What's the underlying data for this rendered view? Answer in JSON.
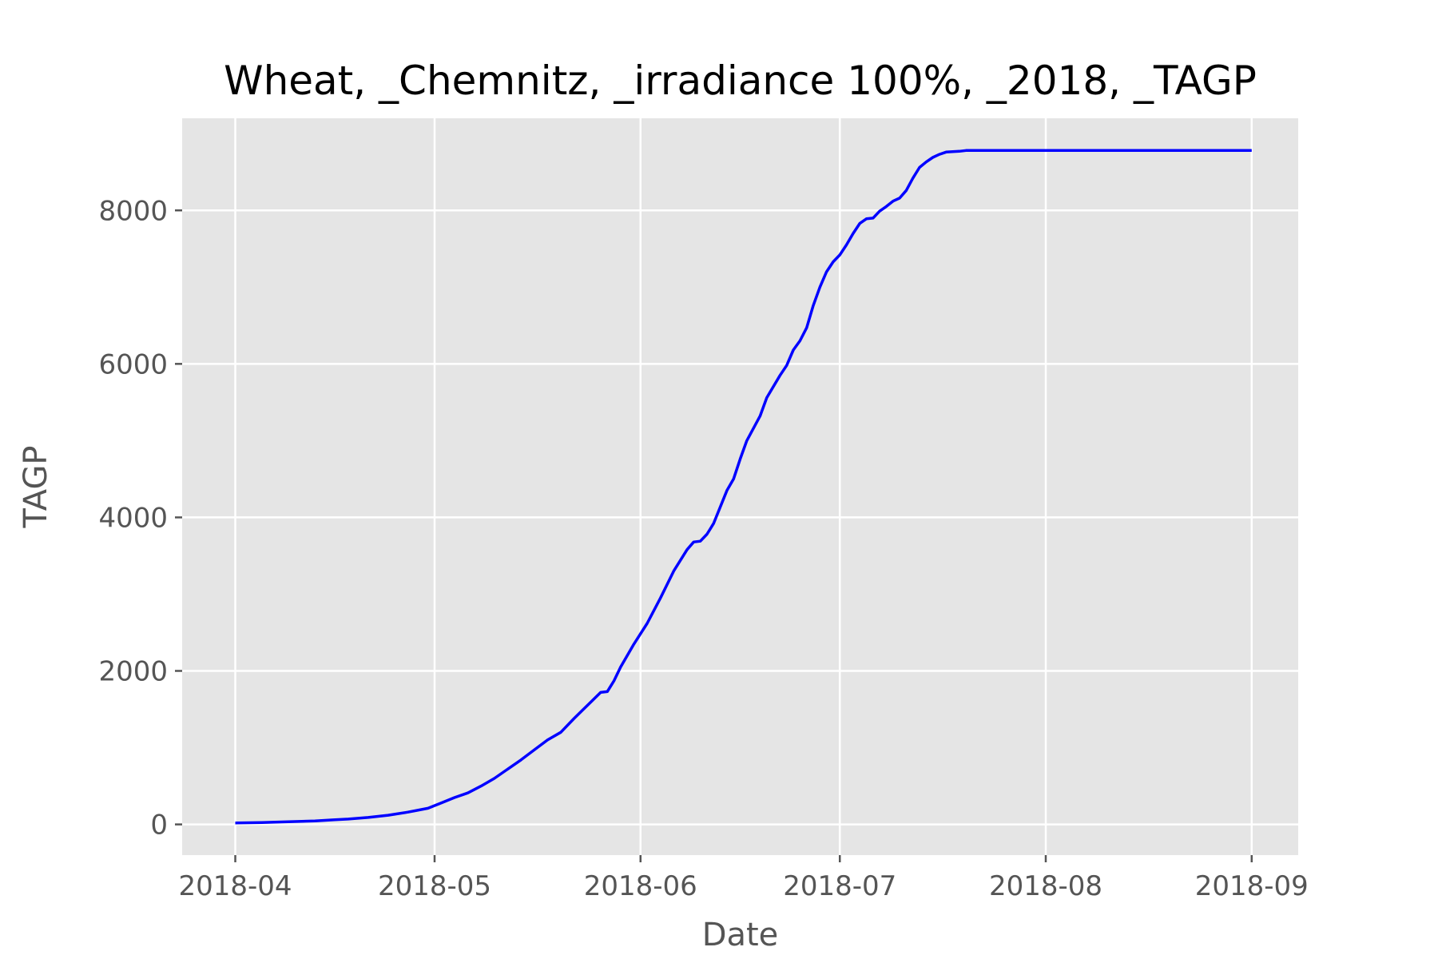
{
  "chart_data": {
    "type": "line",
    "title": "Wheat, _Chemnitz, _irradiance 100%, _2018, _TAGP",
    "xlabel": "Date",
    "ylabel": "TAGP",
    "xlim": [
      "2018-03-24",
      "2018-09-08"
    ],
    "ylim": [
      -400,
      9200
    ],
    "grid": true,
    "x_ticks": [
      "2018-04-01",
      "2018-05-01",
      "2018-06-01",
      "2018-07-01",
      "2018-08-01",
      "2018-09-01"
    ],
    "x_tick_labels": [
      "2018-04",
      "2018-05",
      "2018-06",
      "2018-07",
      "2018-08",
      "2018-09"
    ],
    "y_ticks": [
      0,
      2000,
      4000,
      6000,
      8000
    ],
    "y_tick_labels": [
      "0",
      "2000",
      "4000",
      "6000",
      "8000"
    ],
    "series": [
      {
        "name": "TAGP",
        "color": "#0000ff",
        "points": [
          [
            "2018-04-01",
            20
          ],
          [
            "2018-04-05",
            25
          ],
          [
            "2018-04-09",
            35
          ],
          [
            "2018-04-13",
            45
          ],
          [
            "2018-04-16",
            60
          ],
          [
            "2018-04-18",
            70
          ],
          [
            "2018-04-21",
            90
          ],
          [
            "2018-04-24",
            120
          ],
          [
            "2018-04-27",
            160
          ],
          [
            "2018-04-30",
            210
          ],
          [
            "2018-05-02",
            280
          ],
          [
            "2018-05-04",
            350
          ],
          [
            "2018-05-06",
            410
          ],
          [
            "2018-05-08",
            500
          ],
          [
            "2018-05-10",
            600
          ],
          [
            "2018-05-12",
            720
          ],
          [
            "2018-05-14",
            840
          ],
          [
            "2018-05-16",
            970
          ],
          [
            "2018-05-18",
            1100
          ],
          [
            "2018-05-20",
            1200
          ],
          [
            "2018-05-22",
            1380
          ],
          [
            "2018-05-24",
            1550
          ],
          [
            "2018-05-26",
            1720
          ],
          [
            "2018-05-27",
            1730
          ],
          [
            "2018-05-28",
            1870
          ],
          [
            "2018-05-29",
            2050
          ],
          [
            "2018-05-31",
            2350
          ],
          [
            "2018-06-02",
            2620
          ],
          [
            "2018-06-04",
            2950
          ],
          [
            "2018-06-06",
            3300
          ],
          [
            "2018-06-08",
            3580
          ],
          [
            "2018-06-09",
            3680
          ],
          [
            "2018-06-10",
            3690
          ],
          [
            "2018-06-11",
            3780
          ],
          [
            "2018-06-12",
            3920
          ],
          [
            "2018-06-14",
            4350
          ],
          [
            "2018-06-15",
            4500
          ],
          [
            "2018-06-16",
            4760
          ],
          [
            "2018-06-17",
            5000
          ],
          [
            "2018-06-19",
            5320
          ],
          [
            "2018-06-20",
            5560
          ],
          [
            "2018-06-22",
            5850
          ],
          [
            "2018-06-23",
            5980
          ],
          [
            "2018-06-24",
            6180
          ],
          [
            "2018-06-25",
            6300
          ],
          [
            "2018-06-26",
            6470
          ],
          [
            "2018-06-27",
            6760
          ],
          [
            "2018-06-28",
            7000
          ],
          [
            "2018-06-29",
            7200
          ],
          [
            "2018-06-30",
            7330
          ],
          [
            "2018-07-01",
            7420
          ],
          [
            "2018-07-02",
            7550
          ],
          [
            "2018-07-03",
            7700
          ],
          [
            "2018-07-04",
            7830
          ],
          [
            "2018-07-05",
            7890
          ],
          [
            "2018-07-06",
            7900
          ],
          [
            "2018-07-07",
            7990
          ],
          [
            "2018-07-08",
            8050
          ],
          [
            "2018-07-09",
            8120
          ],
          [
            "2018-07-10",
            8160
          ],
          [
            "2018-07-11",
            8260
          ],
          [
            "2018-07-12",
            8420
          ],
          [
            "2018-07-13",
            8560
          ],
          [
            "2018-07-14",
            8630
          ],
          [
            "2018-07-15",
            8690
          ],
          [
            "2018-07-16",
            8730
          ],
          [
            "2018-07-17",
            8760
          ],
          [
            "2018-07-19",
            8770
          ],
          [
            "2018-07-20",
            8780
          ],
          [
            "2018-09-01",
            8780
          ]
        ]
      }
    ]
  }
}
